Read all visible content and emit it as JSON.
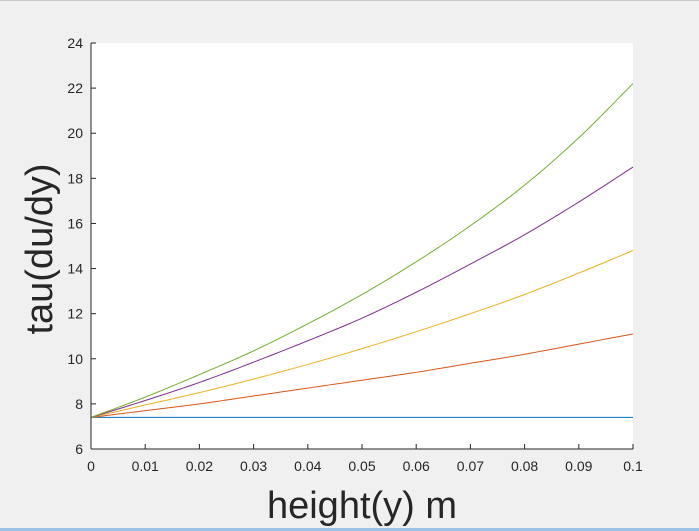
{
  "colors": {
    "background": "#f0f0f0",
    "axes_background": "#ffffff",
    "axis_color": "#262626",
    "series": [
      "#0072BD",
      "#D95319",
      "#EDB120",
      "#7E2F8E",
      "#77AC30"
    ]
  },
  "chart_data": {
    "type": "line",
    "title": "",
    "xlabel": "height(y) m",
    "ylabel": "tau(du/dy)",
    "xlim": [
      0,
      0.1
    ],
    "ylim": [
      6,
      24
    ],
    "grid": false,
    "x_ticks": [
      "0",
      "0.01",
      "0.02",
      "0.03",
      "0.04",
      "0.05",
      "0.06",
      "0.07",
      "0.08",
      "0.09",
      "0.1"
    ],
    "y_ticks": [
      "6",
      "8",
      "10",
      "12",
      "14",
      "16",
      "18",
      "20",
      "22",
      "24"
    ],
    "x": [
      0,
      0.01,
      0.02,
      0.03,
      0.04,
      0.05,
      0.06,
      0.07,
      0.08,
      0.09,
      0.1
    ],
    "series": [
      {
        "color": "#0072BD",
        "values": [
          7.4,
          7.4,
          7.4,
          7.4,
          7.4,
          7.4,
          7.4,
          7.4,
          7.4,
          7.4,
          7.4
        ]
      },
      {
        "color": "#D95319",
        "values": [
          7.4,
          7.7,
          8.0,
          8.35,
          8.7,
          9.05,
          9.4,
          9.8,
          10.2,
          10.65,
          11.1
        ]
      },
      {
        "color": "#EDB120",
        "values": [
          7.4,
          7.95,
          8.5,
          9.1,
          9.75,
          10.45,
          11.2,
          12.0,
          12.85,
          13.8,
          14.8
        ]
      },
      {
        "color": "#7E2F8E",
        "values": [
          7.4,
          8.15,
          8.95,
          9.85,
          10.8,
          11.8,
          12.95,
          14.2,
          15.5,
          16.95,
          18.5
        ]
      },
      {
        "color": "#77AC30",
        "values": [
          7.4,
          8.3,
          9.3,
          10.35,
          11.55,
          12.85,
          14.3,
          15.9,
          17.7,
          19.8,
          22.2
        ]
      }
    ]
  }
}
